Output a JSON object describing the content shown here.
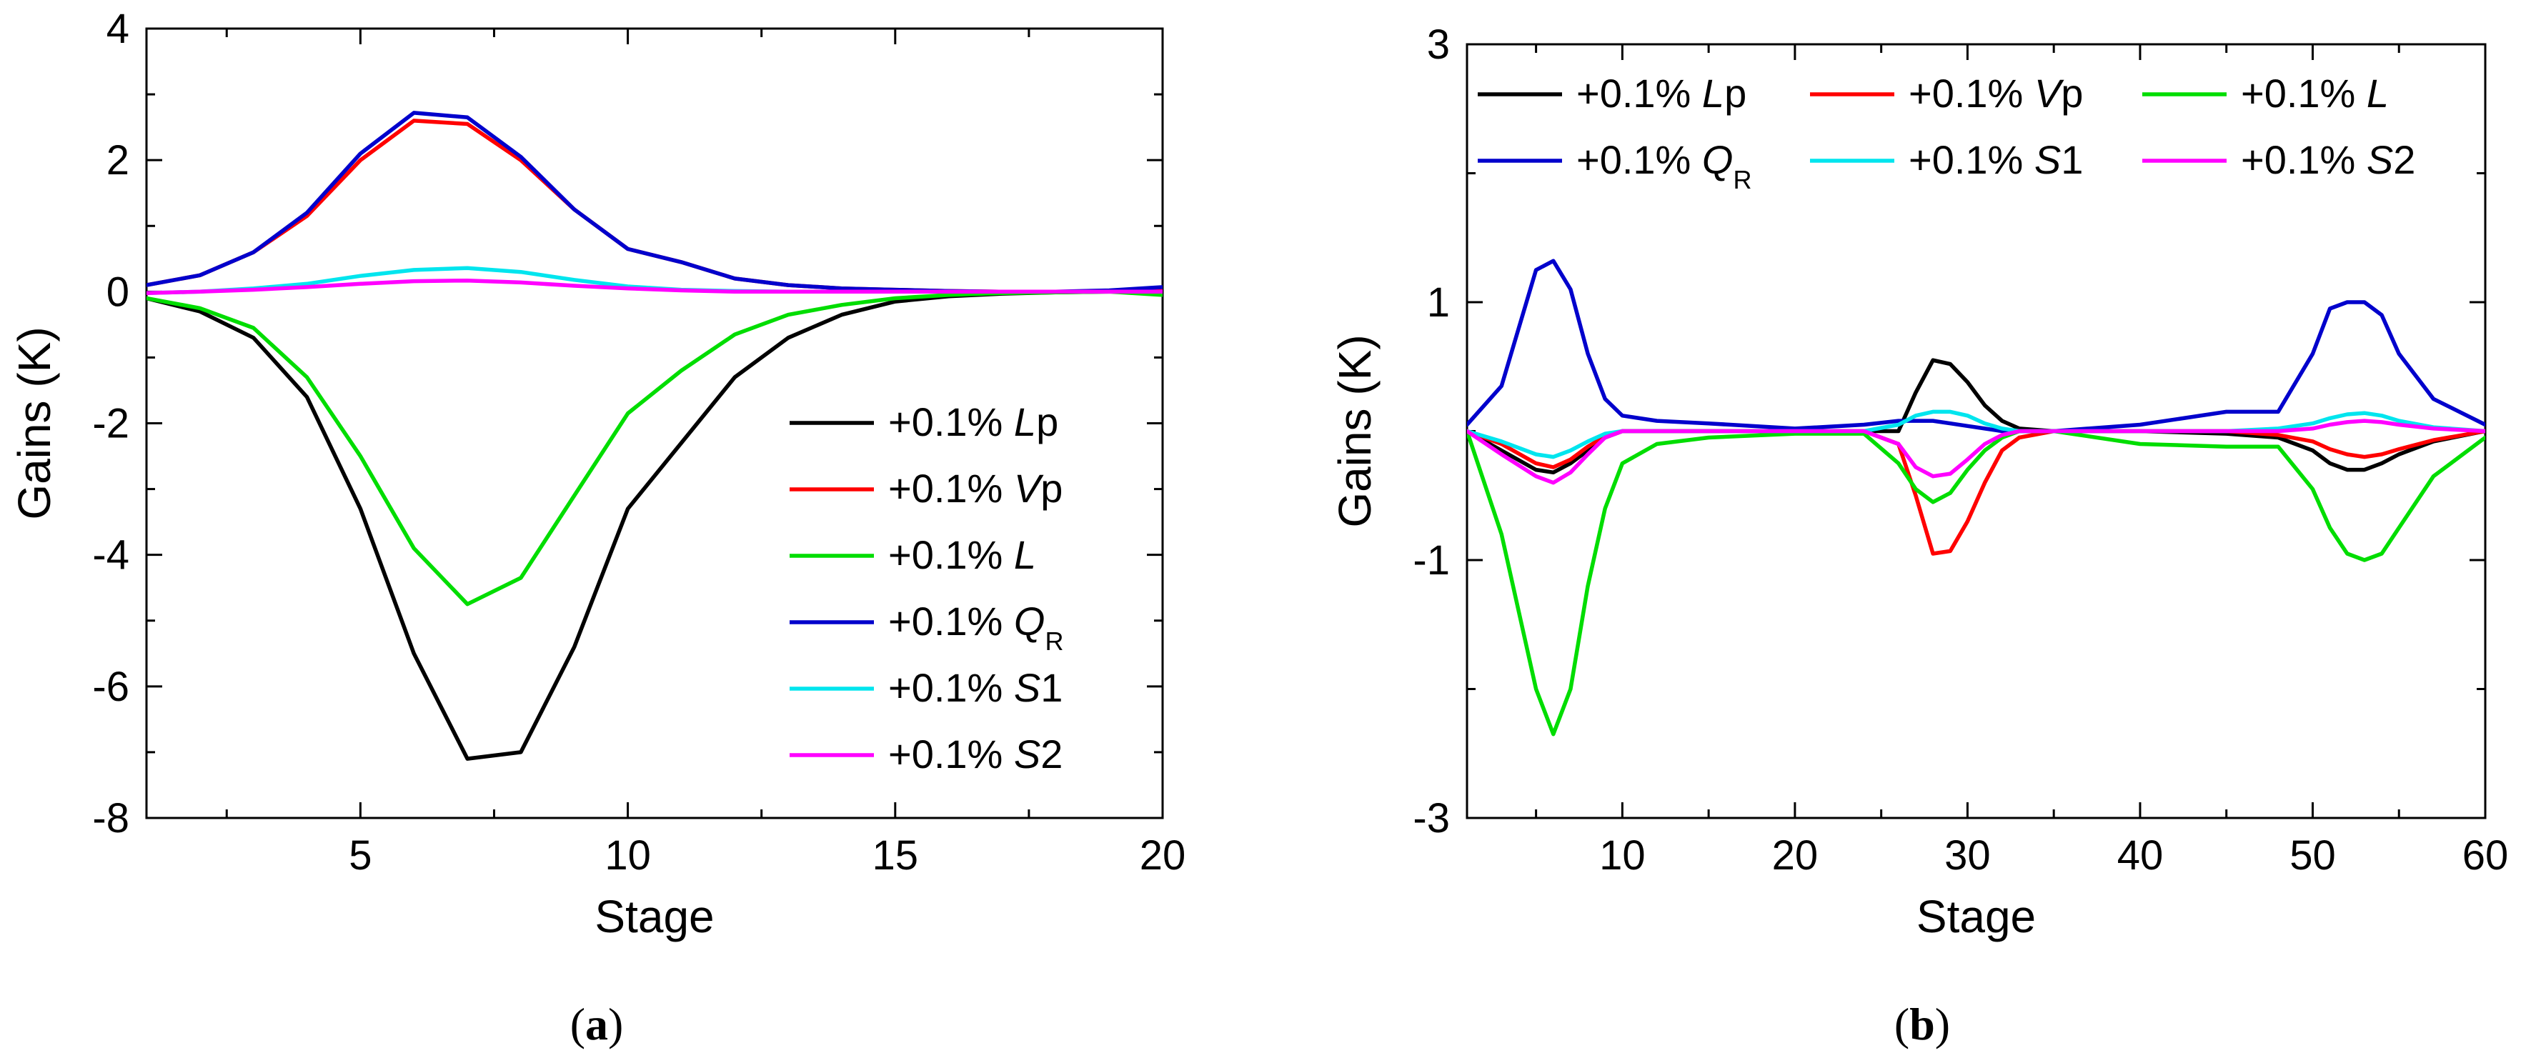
{
  "chart_data": [
    {
      "id": "a",
      "type": "line",
      "caption": "a",
      "xlabel": "Stage",
      "ylabel": "Gains (K)",
      "xlim": [
        1,
        20
      ],
      "ylim": [
        -8,
        4
      ],
      "xticks": [
        5,
        10,
        15,
        20
      ],
      "yticks": [
        -8,
        -6,
        -4,
        -2,
        0,
        2,
        4
      ],
      "x": [
        1,
        2,
        3,
        4,
        5,
        6,
        7,
        8,
        9,
        10,
        11,
        12,
        13,
        14,
        15,
        16,
        17,
        18,
        19,
        20
      ],
      "legend_position": "bottom-right",
      "series": [
        {
          "name": "Lp",
          "prefix": "+0.1% ",
          "var": "L",
          "suffix": "p",
          "sub": "",
          "color": "#000000",
          "values": [
            -0.1,
            -0.3,
            -0.7,
            -1.6,
            -3.3,
            -5.5,
            -7.1,
            -7.0,
            -5.4,
            -3.3,
            -2.3,
            -1.3,
            -0.7,
            -0.35,
            -0.15,
            -0.07,
            -0.03,
            -0.01,
            0.0,
            0.0
          ]
        },
        {
          "name": "Vp",
          "prefix": "+0.1% ",
          "var": "V",
          "suffix": "p",
          "sub": "",
          "color": "#ff0000",
          "values": [
            0.1,
            0.25,
            0.6,
            1.15,
            2.0,
            2.6,
            2.55,
            2.0,
            1.25,
            0.65,
            0.45,
            0.2,
            0.1,
            0.05,
            0.03,
            0.01,
            0.0,
            0.0,
            0.0,
            0.05
          ]
        },
        {
          "name": "L",
          "prefix": "+0.1% ",
          "var": "L",
          "suffix": "",
          "sub": "",
          "color": "#00dd00",
          "values": [
            -0.1,
            -0.25,
            -0.55,
            -1.3,
            -2.5,
            -3.9,
            -4.75,
            -4.35,
            -3.1,
            -1.85,
            -1.2,
            -0.65,
            -0.35,
            -0.2,
            -0.1,
            -0.05,
            -0.02,
            -0.01,
            0.0,
            -0.05
          ]
        },
        {
          "name": "QR",
          "prefix": "+0.1% ",
          "var": "Q",
          "suffix": "",
          "sub": "R",
          "color": "#0000cc",
          "values": [
            0.1,
            0.25,
            0.6,
            1.2,
            2.1,
            2.72,
            2.65,
            2.05,
            1.25,
            0.65,
            0.45,
            0.2,
            0.1,
            0.05,
            0.03,
            0.01,
            0.0,
            0.0,
            0.02,
            0.07
          ]
        },
        {
          "name": "S1",
          "prefix": "+0.1% ",
          "var": "S",
          "suffix": "1",
          "sub": "",
          "color": "#00e5ee",
          "values": [
            -0.02,
            0.0,
            0.05,
            0.12,
            0.24,
            0.33,
            0.36,
            0.3,
            0.18,
            0.08,
            0.03,
            0.01,
            0.0,
            0.0,
            0.0,
            0.0,
            0.0,
            0.0,
            0.0,
            0.0
          ]
        },
        {
          "name": "S2",
          "prefix": "+0.1% ",
          "var": "S",
          "suffix": "2",
          "sub": "",
          "color": "#ff00ff",
          "values": [
            -0.02,
            0.0,
            0.03,
            0.07,
            0.12,
            0.16,
            0.17,
            0.14,
            0.09,
            0.05,
            0.02,
            0.0,
            0.0,
            0.0,
            0.0,
            0.0,
            0.0,
            0.0,
            0.0,
            0.0
          ]
        }
      ]
    },
    {
      "id": "b",
      "type": "line",
      "caption": "b",
      "xlabel": "Stage",
      "ylabel": "Gains (K)",
      "xlim": [
        1,
        60
      ],
      "ylim": [
        -3,
        3
      ],
      "xticks": [
        10,
        20,
        30,
        40,
        50,
        60
      ],
      "yticks": [
        -3,
        -1,
        1,
        3
      ],
      "x": [
        1,
        3,
        5,
        6,
        7,
        8,
        9,
        10,
        12,
        15,
        20,
        24,
        26,
        27,
        28,
        29,
        30,
        31,
        32,
        33,
        35,
        40,
        45,
        48,
        50,
        51,
        52,
        53,
        54,
        55,
        57,
        60
      ],
      "legend_position": "top",
      "series": [
        {
          "name": "Lp",
          "prefix": "+0.1% ",
          "var": "L",
          "suffix": "p",
          "sub": "",
          "color": "#000000",
          "values": [
            0.0,
            -0.15,
            -0.3,
            -0.32,
            -0.25,
            -0.15,
            -0.05,
            0.0,
            0.0,
            0.0,
            0.0,
            0.0,
            0.0,
            0.3,
            0.55,
            0.52,
            0.38,
            0.2,
            0.08,
            0.02,
            0.0,
            0.0,
            -0.02,
            -0.05,
            -0.15,
            -0.25,
            -0.3,
            -0.3,
            -0.25,
            -0.18,
            -0.08,
            0.0
          ]
        },
        {
          "name": "Vp",
          "prefix": "+0.1% ",
          "var": "V",
          "suffix": "p",
          "sub": "",
          "color": "#ff0000",
          "values": [
            0.0,
            -0.1,
            -0.25,
            -0.28,
            -0.22,
            -0.12,
            -0.04,
            0.0,
            0.0,
            0.0,
            0.0,
            0.0,
            -0.1,
            -0.5,
            -0.95,
            -0.93,
            -0.7,
            -0.4,
            -0.15,
            -0.05,
            0.0,
            0.0,
            0.0,
            -0.03,
            -0.08,
            -0.14,
            -0.18,
            -0.2,
            -0.18,
            -0.14,
            -0.07,
            0.0
          ]
        },
        {
          "name": "L",
          "prefix": "+0.1% ",
          "var": "L",
          "suffix": "",
          "sub": "",
          "color": "#00dd00",
          "values": [
            0.0,
            -0.8,
            -2.0,
            -2.35,
            -2.0,
            -1.2,
            -0.6,
            -0.25,
            -0.1,
            -0.05,
            -0.02,
            -0.02,
            -0.25,
            -0.45,
            -0.55,
            -0.48,
            -0.3,
            -0.15,
            -0.05,
            0.0,
            0.0,
            -0.1,
            -0.12,
            -0.12,
            -0.45,
            -0.75,
            -0.95,
            -1.0,
            -0.95,
            -0.75,
            -0.35,
            -0.05
          ]
        },
        {
          "name": "QR",
          "prefix": "+0.1% ",
          "var": "Q",
          "suffix": "",
          "sub": "R",
          "color": "#0000cc",
          "values": [
            0.05,
            0.35,
            1.25,
            1.32,
            1.1,
            0.6,
            0.25,
            0.12,
            0.08,
            0.06,
            0.02,
            0.05,
            0.08,
            0.08,
            0.08,
            0.06,
            0.04,
            0.02,
            0.0,
            0.0,
            0.0,
            0.05,
            0.15,
            0.15,
            0.6,
            0.95,
            1.0,
            1.0,
            0.9,
            0.6,
            0.25,
            0.05
          ]
        },
        {
          "name": "S1",
          "prefix": "+0.1% ",
          "var": "S",
          "suffix": "1",
          "sub": "",
          "color": "#00e5ee",
          "values": [
            0.0,
            -0.08,
            -0.18,
            -0.2,
            -0.15,
            -0.08,
            -0.02,
            0.0,
            0.0,
            0.0,
            0.0,
            0.0,
            0.05,
            0.12,
            0.15,
            0.15,
            0.12,
            0.06,
            0.02,
            0.0,
            0.0,
            0.0,
            0.0,
            0.02,
            0.06,
            0.1,
            0.13,
            0.14,
            0.12,
            0.08,
            0.03,
            0.0
          ]
        },
        {
          "name": "S2",
          "prefix": "+0.1% ",
          "var": "S",
          "suffix": "2",
          "sub": "",
          "color": "#ff00ff",
          "values": [
            0.0,
            -0.18,
            -0.35,
            -0.4,
            -0.32,
            -0.18,
            -0.05,
            0.0,
            0.0,
            0.0,
            0.0,
            0.0,
            -0.1,
            -0.28,
            -0.35,
            -0.33,
            -0.22,
            -0.1,
            -0.03,
            0.0,
            0.0,
            0.0,
            0.0,
            0.0,
            0.02,
            0.05,
            0.07,
            0.08,
            0.07,
            0.05,
            0.02,
            0.0
          ]
        }
      ]
    }
  ]
}
